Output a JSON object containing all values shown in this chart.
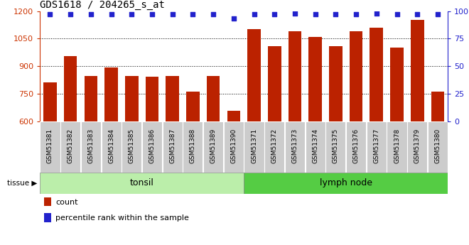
{
  "title": "GDS1618 / 204265_s_at",
  "samples": [
    "GSM51381",
    "GSM51382",
    "GSM51383",
    "GSM51384",
    "GSM51385",
    "GSM51386",
    "GSM51387",
    "GSM51388",
    "GSM51389",
    "GSM51390",
    "GSM51371",
    "GSM51372",
    "GSM51373",
    "GSM51374",
    "GSM51375",
    "GSM51376",
    "GSM51377",
    "GSM51378",
    "GSM51379",
    "GSM51380"
  ],
  "counts": [
    810,
    955,
    845,
    893,
    848,
    842,
    848,
    760,
    848,
    658,
    1100,
    1010,
    1090,
    1060,
    1010,
    1090,
    1110,
    1000,
    1150,
    760
  ],
  "percentiles": [
    97,
    97,
    97,
    97,
    97,
    97,
    97,
    97,
    97,
    93,
    97,
    97,
    98,
    97,
    97,
    97,
    98,
    97,
    97,
    97
  ],
  "n_tonsil": 10,
  "n_lymph": 10,
  "ylim_left": [
    600,
    1200
  ],
  "yticks_left": [
    600,
    750,
    900,
    1050,
    1200
  ],
  "ylim_right": [
    0,
    100
  ],
  "yticks_right": [
    0,
    25,
    50,
    75,
    100
  ],
  "bar_color": "#bb2200",
  "dot_color": "#2222cc",
  "tonsil_bg": "#bbeeaa",
  "lymph_bg": "#55cc44",
  "tickbg_color": "#cccccc",
  "tonsil_label": "tonsil",
  "lymph_label": "lymph node",
  "legend_count_color": "#bb2200",
  "legend_pct_color": "#2222cc"
}
